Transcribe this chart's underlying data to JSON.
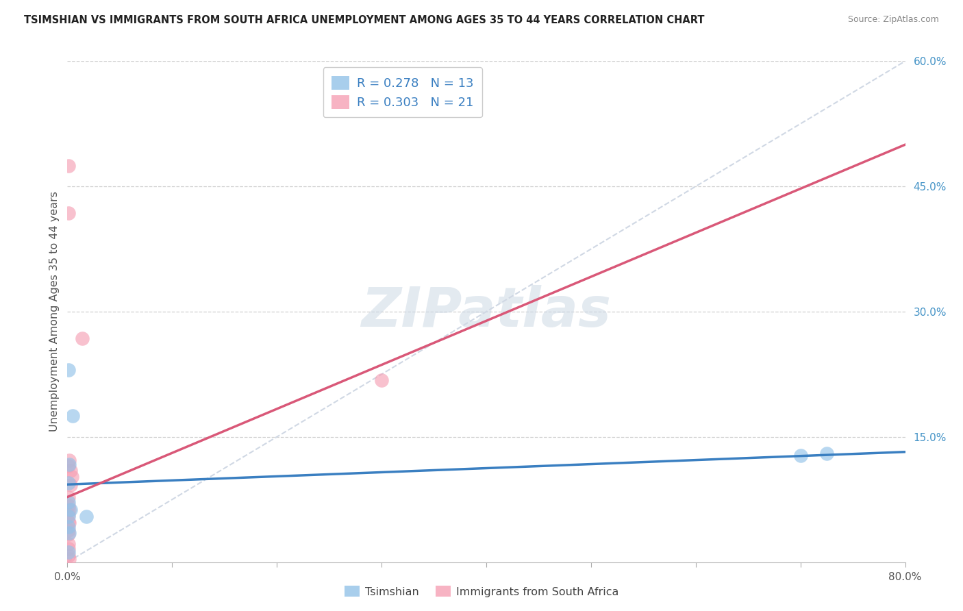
{
  "title": "TSIMSHIAN VS IMMIGRANTS FROM SOUTH AFRICA UNEMPLOYMENT AMONG AGES 35 TO 44 YEARS CORRELATION CHART",
  "source": "Source: ZipAtlas.com",
  "ylabel": "Unemployment Among Ages 35 to 44 years",
  "xlim": [
    0.0,
    0.8
  ],
  "ylim": [
    0.0,
    0.6
  ],
  "xtick_positions": [
    0.0,
    0.1,
    0.2,
    0.3,
    0.4,
    0.5,
    0.6,
    0.7,
    0.8
  ],
  "xtick_labels": [
    "0.0%",
    "",
    "",
    "",
    "",
    "",
    "",
    "",
    "80.0%"
  ],
  "ytick_positions": [
    0.0,
    0.15,
    0.3,
    0.45,
    0.6
  ],
  "ytick_labels": [
    "",
    "15.0%",
    "30.0%",
    "45.0%",
    "60.0%"
  ],
  "blue_scatter_color": "#92c2e8",
  "pink_scatter_color": "#f5a0b5",
  "blue_line_color": "#3a7fc1",
  "pink_line_color": "#d95878",
  "diagonal_color": "#d0d8e4",
  "R_blue": "0.278",
  "N_blue": "13",
  "R_pink": "0.303",
  "N_pink": "21",
  "legend_label_blue": "Tsimshian",
  "legend_label_pink": "Immigrants from South Africa",
  "watermark": "ZIPatlas",
  "blue_line": [
    [
      0.0,
      0.093
    ],
    [
      0.8,
      0.132
    ]
  ],
  "pink_line": [
    [
      0.0,
      0.078
    ],
    [
      0.8,
      0.5
    ]
  ],
  "diag_line": [
    [
      0.0,
      0.0
    ],
    [
      0.8,
      0.6
    ]
  ],
  "tsimshian_pts": [
    [
      0.001,
      0.23
    ],
    [
      0.005,
      0.175
    ],
    [
      0.002,
      0.117
    ],
    [
      0.001,
      0.095
    ],
    [
      0.001,
      0.072
    ],
    [
      0.003,
      0.063
    ],
    [
      0.001,
      0.055
    ],
    [
      0.001,
      0.042
    ],
    [
      0.002,
      0.035
    ],
    [
      0.001,
      0.012
    ],
    [
      0.018,
      0.055
    ],
    [
      0.7,
      0.128
    ],
    [
      0.725,
      0.13
    ]
  ],
  "sa_pts": [
    [
      0.001,
      0.475
    ],
    [
      0.001,
      0.418
    ],
    [
      0.014,
      0.268
    ],
    [
      0.002,
      0.122
    ],
    [
      0.001,
      0.115
    ],
    [
      0.003,
      0.11
    ],
    [
      0.004,
      0.102
    ],
    [
      0.003,
      0.092
    ],
    [
      0.001,
      0.078
    ],
    [
      0.001,
      0.068
    ],
    [
      0.002,
      0.063
    ],
    [
      0.001,
      0.057
    ],
    [
      0.001,
      0.048
    ],
    [
      0.002,
      0.047
    ],
    [
      0.001,
      0.038
    ],
    [
      0.001,
      0.033
    ],
    [
      0.001,
      0.022
    ],
    [
      0.001,
      0.016
    ],
    [
      0.001,
      0.008
    ],
    [
      0.002,
      0.004
    ],
    [
      0.3,
      0.218
    ]
  ]
}
